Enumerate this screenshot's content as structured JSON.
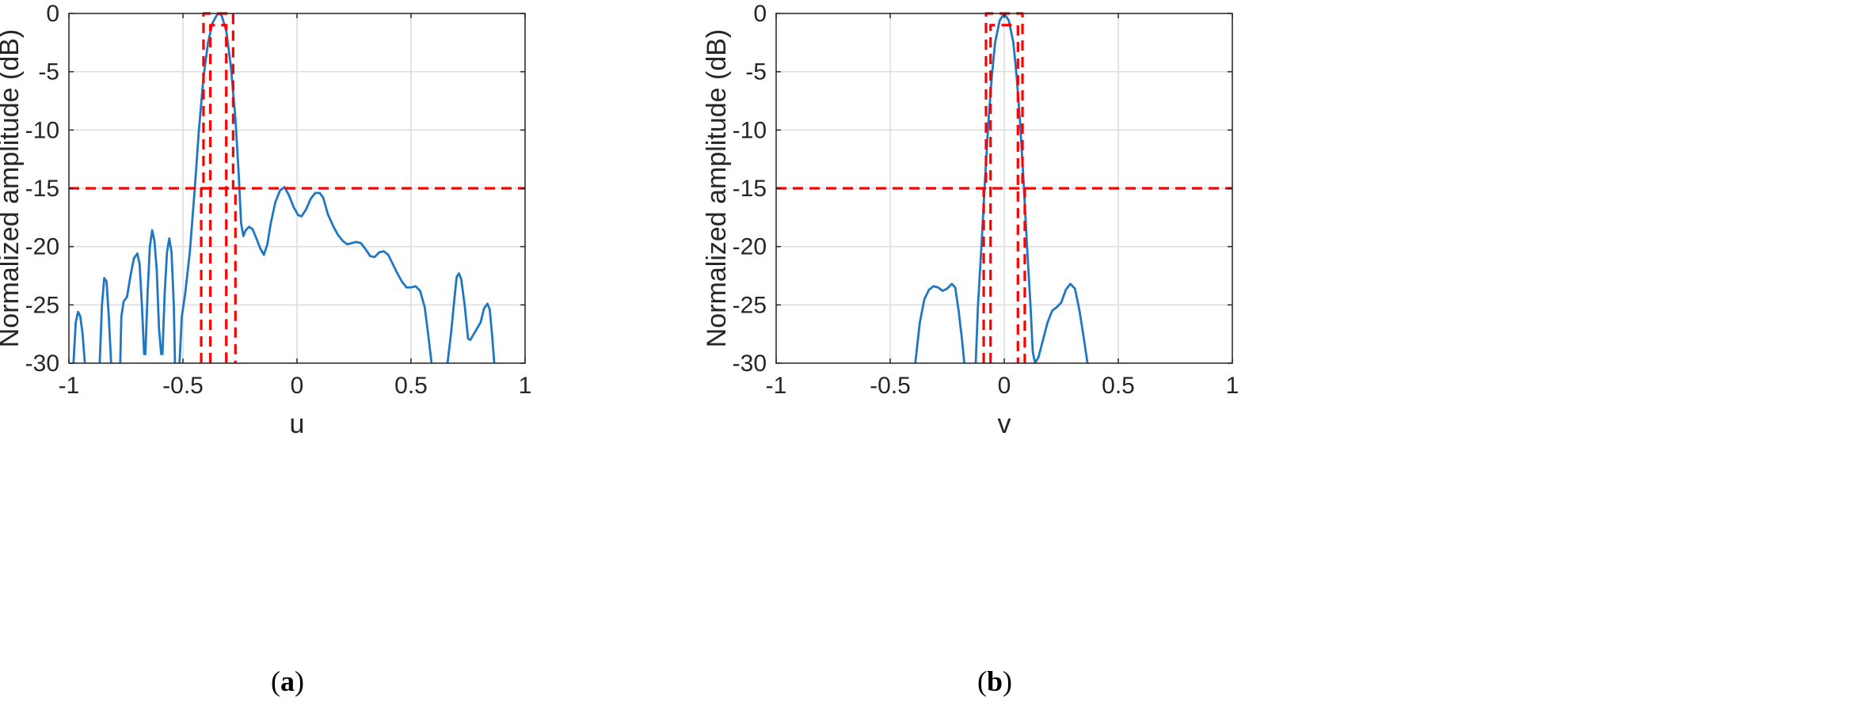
{
  "colors": {
    "curve": "#1f77c4",
    "mask": "#ff0000",
    "grid": "#dcdcdc",
    "axis": "#262626",
    "background": "#ffffff"
  },
  "chart_data": [
    {
      "type": "line",
      "caption_open": "(",
      "caption_letter": "a",
      "caption_close": ")",
      "xlabel": "u",
      "ylabel": "Normalized amplitude (dB)",
      "xlim": [
        -1,
        1
      ],
      "ylim": [
        -30,
        0
      ],
      "xticks": [
        -1,
        -0.5,
        0,
        0.5,
        1
      ],
      "xtick_labels": [
        "-1",
        "-0.5",
        "0",
        "0.5",
        "1"
      ],
      "yticks": [
        0,
        -5,
        -10,
        -15,
        -20,
        -25,
        -30
      ],
      "ytick_labels": [
        "0",
        "-5",
        "-10",
        "-15",
        "-20",
        "-25",
        "-30"
      ],
      "grid": true,
      "series": [
        {
          "style": "solid",
          "color": "curve",
          "segments": [
            [
              [
                -0.98,
                -30
              ],
              [
                -0.97,
                -26.5
              ],
              [
                -0.96,
                -25.6
              ],
              [
                -0.95,
                -26.0
              ],
              [
                -0.94,
                -27.5
              ],
              [
                -0.93,
                -30
              ]
            ],
            [
              [
                -0.865,
                -30
              ],
              [
                -0.855,
                -25
              ],
              [
                -0.845,
                -22.7
              ],
              [
                -0.835,
                -23.0
              ],
              [
                -0.825,
                -26
              ],
              [
                -0.815,
                -30
              ]
            ],
            [
              [
                -0.775,
                -30
              ],
              [
                -0.77,
                -26
              ],
              [
                -0.76,
                -24.7
              ],
              [
                -0.745,
                -24.3
              ],
              [
                -0.73,
                -22.5
              ],
              [
                -0.715,
                -21.0
              ],
              [
                -0.7,
                -20.6
              ],
              [
                -0.69,
                -21.5
              ],
              [
                -0.68,
                -25
              ],
              [
                -0.67,
                -29.3
              ]
            ],
            [
              [
                -0.665,
                -29.3
              ],
              [
                -0.655,
                -24
              ],
              [
                -0.645,
                -20
              ],
              [
                -0.635,
                -18.6
              ],
              [
                -0.625,
                -19.5
              ],
              [
                -0.615,
                -22
              ],
              [
                -0.605,
                -27
              ],
              [
                -0.595,
                -29.3
              ]
            ],
            [
              [
                -0.59,
                -29.3
              ],
              [
                -0.58,
                -24
              ],
              [
                -0.57,
                -20.5
              ],
              [
                -0.56,
                -19.3
              ],
              [
                -0.55,
                -20.5
              ],
              [
                -0.54,
                -25
              ],
              [
                -0.535,
                -30
              ]
            ],
            [
              [
                -0.515,
                -30
              ],
              [
                -0.505,
                -26
              ],
              [
                -0.49,
                -24
              ],
              [
                -0.47,
                -20.5
              ],
              [
                -0.45,
                -15.5
              ],
              [
                -0.43,
                -10
              ],
              [
                -0.41,
                -5.5
              ],
              [
                -0.39,
                -2.5
              ],
              [
                -0.37,
                -0.8
              ],
              [
                -0.35,
                -0.1
              ],
              [
                -0.34,
                0
              ],
              [
                -0.33,
                -0.2
              ],
              [
                -0.31,
                -1.5
              ],
              [
                -0.29,
                -4.5
              ],
              [
                -0.27,
                -9
              ],
              [
                -0.255,
                -14
              ],
              [
                -0.245,
                -18
              ],
              [
                -0.235,
                -19.1
              ],
              [
                -0.225,
                -18.6
              ],
              [
                -0.21,
                -18.3
              ],
              [
                -0.195,
                -18.5
              ],
              [
                -0.18,
                -19.2
              ],
              [
                -0.16,
                -20.2
              ],
              [
                -0.145,
                -20.7
              ],
              [
                -0.13,
                -19.8
              ],
              [
                -0.115,
                -18
              ],
              [
                -0.095,
                -16.2
              ],
              [
                -0.075,
                -15.2
              ],
              [
                -0.055,
                -14.9
              ],
              [
                -0.035,
                -15.6
              ],
              [
                -0.015,
                -16.6
              ],
              [
                0.005,
                -17.3
              ],
              [
                0.02,
                -17.4
              ],
              [
                0.04,
                -16.8
              ],
              [
                0.06,
                -15.9
              ],
              [
                0.08,
                -15.4
              ],
              [
                0.1,
                -15.4
              ],
              [
                0.115,
                -15.8
              ],
              [
                0.135,
                -17.2
              ],
              [
                0.16,
                -18.3
              ],
              [
                0.18,
                -19.0
              ],
              [
                0.2,
                -19.5
              ],
              [
                0.22,
                -19.8
              ],
              [
                0.24,
                -19.7
              ],
              [
                0.26,
                -19.6
              ],
              [
                0.28,
                -19.7
              ],
              [
                0.3,
                -20.2
              ],
              [
                0.32,
                -20.8
              ],
              [
                0.34,
                -20.9
              ],
              [
                0.36,
                -20.5
              ],
              [
                0.38,
                -20.4
              ],
              [
                0.4,
                -20.7
              ],
              [
                0.42,
                -21.5
              ],
              [
                0.44,
                -22.3
              ],
              [
                0.46,
                -23.0
              ],
              [
                0.48,
                -23.5
              ],
              [
                0.5,
                -23.5
              ],
              [
                0.52,
                -23.4
              ],
              [
                0.54,
                -23.8
              ],
              [
                0.56,
                -25.2
              ],
              [
                0.575,
                -27.5
              ],
              [
                0.59,
                -30
              ]
            ],
            [
              [
                0.66,
                -30
              ],
              [
                0.675,
                -27.5
              ],
              [
                0.69,
                -24.5
              ],
              [
                0.7,
                -22.6
              ],
              [
                0.71,
                -22.3
              ],
              [
                0.72,
                -22.8
              ],
              [
                0.735,
                -25
              ],
              [
                0.75,
                -27.9
              ],
              [
                0.76,
                -28.0
              ],
              [
                0.775,
                -27.5
              ],
              [
                0.79,
                -27.0
              ],
              [
                0.805,
                -26.5
              ],
              [
                0.82,
                -25.3
              ],
              [
                0.835,
                -24.9
              ],
              [
                0.845,
                -25.4
              ],
              [
                0.855,
                -27.5
              ],
              [
                0.865,
                -30
              ]
            ]
          ]
        },
        {
          "style": "dashed",
          "color": "mask",
          "segments": [
            [
              [
                -1,
                -15
              ],
              [
                1,
                -15
              ]
            ],
            [
              [
                -0.42,
                -30
              ],
              [
                -0.42,
                -15
              ],
              [
                -0.41,
                -15
              ],
              [
                -0.41,
                0
              ],
              [
                -0.28,
                0
              ],
              [
                -0.28,
                -15
              ],
              [
                -0.27,
                -15
              ],
              [
                -0.27,
                -30
              ]
            ],
            [
              [
                -0.38,
                -30
              ],
              [
                -0.38,
                -1
              ],
              [
                -0.31,
                -1
              ],
              [
                -0.31,
                -30
              ]
            ]
          ]
        }
      ]
    },
    {
      "type": "line",
      "caption_open": "(",
      "caption_letter": "b",
      "caption_close": ")",
      "xlabel": "v",
      "ylabel": "Normalized amplitude (dB)",
      "xlim": [
        -1,
        1
      ],
      "ylim": [
        -30,
        0
      ],
      "xticks": [
        -1,
        -0.5,
        0,
        0.5,
        1
      ],
      "xtick_labels": [
        "-1",
        "-0.5",
        "0",
        "0.5",
        "1"
      ],
      "yticks": [
        0,
        -5,
        -10,
        -15,
        -20,
        -25,
        -30
      ],
      "ytick_labels": [
        "0",
        "-5",
        "-10",
        "-15",
        "-20",
        "-25",
        "-30"
      ],
      "grid": true,
      "series": [
        {
          "style": "solid",
          "color": "curve",
          "segments": [
            [
              [
                -0.39,
                -30
              ],
              [
                -0.37,
                -26.5
              ],
              [
                -0.35,
                -24.5
              ],
              [
                -0.33,
                -23.7
              ],
              [
                -0.31,
                -23.4
              ],
              [
                -0.29,
                -23.5
              ],
              [
                -0.27,
                -23.8
              ],
              [
                -0.25,
                -23.6
              ],
              [
                -0.23,
                -23.2
              ],
              [
                -0.215,
                -23.5
              ],
              [
                -0.2,
                -25.5
              ],
              [
                -0.185,
                -28
              ],
              [
                -0.175,
                -30
              ]
            ],
            [
              [
                -0.125,
                -30
              ],
              [
                -0.115,
                -25
              ],
              [
                -0.1,
                -20
              ],
              [
                -0.085,
                -14.5
              ],
              [
                -0.07,
                -9.5
              ],
              [
                -0.055,
                -5.5
              ],
              [
                -0.04,
                -2.5
              ],
              [
                -0.02,
                -0.6
              ],
              [
                0,
                0
              ],
              [
                0.02,
                -0.6
              ],
              [
                0.04,
                -2.5
              ],
              [
                0.055,
                -5.5
              ],
              [
                0.07,
                -9.5
              ],
              [
                0.085,
                -14.5
              ],
              [
                0.1,
                -20
              ],
              [
                0.115,
                -25
              ],
              [
                0.125,
                -29
              ],
              [
                0.135,
                -30
              ],
              [
                0.15,
                -29.5
              ],
              [
                0.17,
                -28.0
              ],
              [
                0.19,
                -26.5
              ],
              [
                0.21,
                -25.5
              ],
              [
                0.23,
                -25.2
              ],
              [
                0.25,
                -24.8
              ],
              [
                0.27,
                -23.7
              ],
              [
                0.29,
                -23.2
              ],
              [
                0.31,
                -23.6
              ],
              [
                0.33,
                -25.5
              ],
              [
                0.35,
                -28
              ],
              [
                0.365,
                -30
              ]
            ]
          ]
        },
        {
          "style": "dashed",
          "color": "mask",
          "segments": [
            [
              [
                -1,
                -15
              ],
              [
                1,
                -15
              ]
            ],
            [
              [
                -0.09,
                -30
              ],
              [
                -0.09,
                -15
              ],
              [
                -0.08,
                -15
              ],
              [
                -0.08,
                0
              ],
              [
                0.08,
                0
              ],
              [
                0.08,
                -15
              ],
              [
                0.09,
                -15
              ],
              [
                0.09,
                -30
              ]
            ],
            [
              [
                -0.06,
                -30
              ],
              [
                -0.06,
                -1
              ],
              [
                0.06,
                -1
              ],
              [
                0.06,
                -30
              ]
            ]
          ]
        }
      ]
    }
  ]
}
